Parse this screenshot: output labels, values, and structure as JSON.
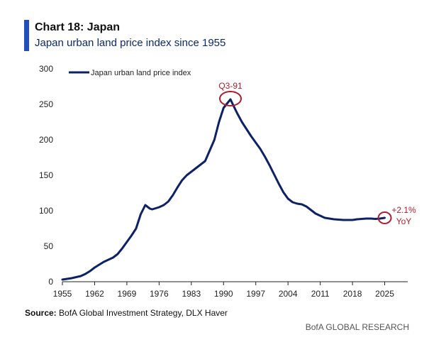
{
  "header": {
    "title": "Chart 18: Japan",
    "subtitle": "Japan urban land price index since 1955"
  },
  "footer": {
    "source_label": "Source:",
    "source_text": "BofA Global Investment Strategy, DLX Haver",
    "brand": "BofA GLOBAL RESEARCH"
  },
  "colors": {
    "line": "#0d2266",
    "accent_bar": "#1f4fbf",
    "annotation": "#b01c2e",
    "axis": "#222222"
  },
  "chart_data": {
    "type": "line",
    "title": "",
    "xlabel": "",
    "ylabel": "",
    "xlim": [
      1955,
      2030
    ],
    "ylim": [
      0,
      300
    ],
    "x_ticks": [
      1955,
      1962,
      1969,
      1976,
      1983,
      1990,
      1997,
      2004,
      2011,
      2018,
      2025
    ],
    "y_ticks": [
      0,
      50,
      100,
      150,
      200,
      250,
      300
    ],
    "grid": false,
    "legend_position": "top-left",
    "series": [
      {
        "name": "Japan urban land price index",
        "x": [
          1955,
          1957,
          1959,
          1960,
          1961,
          1962,
          1963,
          1964,
          1965,
          1966,
          1967,
          1968,
          1969,
          1970,
          1971,
          1972,
          1973,
          1974,
          1974.5,
          1975,
          1976,
          1977,
          1978,
          1979,
          1980,
          1981,
          1982,
          1983,
          1984,
          1985,
          1986,
          1987,
          1988,
          1989,
          1990,
          1991.5,
          1992,
          1993,
          1994,
          1995,
          1996,
          1997,
          1998,
          1999,
          2000,
          2001,
          2002,
          2003,
          2004,
          2005,
          2006,
          2007,
          2008,
          2009,
          2010,
          2011,
          2012,
          2013,
          2014,
          2015,
          2016,
          2017,
          2018,
          2019,
          2020,
          2021,
          2022,
          2023,
          2024,
          2025
        ],
        "y": [
          3,
          5,
          8,
          11,
          15,
          20,
          24,
          28,
          31,
          34,
          39,
          47,
          56,
          65,
          75,
          95,
          108,
          103,
          102,
          103,
          105,
          108,
          113,
          122,
          133,
          143,
          150,
          155,
          160,
          165,
          170,
          185,
          200,
          225,
          245,
          257,
          250,
          237,
          225,
          215,
          205,
          196,
          187,
          176,
          164,
          151,
          138,
          126,
          117,
          112,
          110,
          109,
          106,
          101,
          96,
          93,
          90,
          89,
          88,
          87.5,
          87,
          87,
          87,
          88,
          88.5,
          89,
          89,
          88.5,
          89,
          90
        ]
      }
    ],
    "annotations": [
      {
        "label": "Q3-91",
        "x": 1991.5,
        "y": 257
      },
      {
        "label_line1": "+2.1%",
        "label_line2": "YoY",
        "x": 2025,
        "y": 90
      }
    ]
  }
}
